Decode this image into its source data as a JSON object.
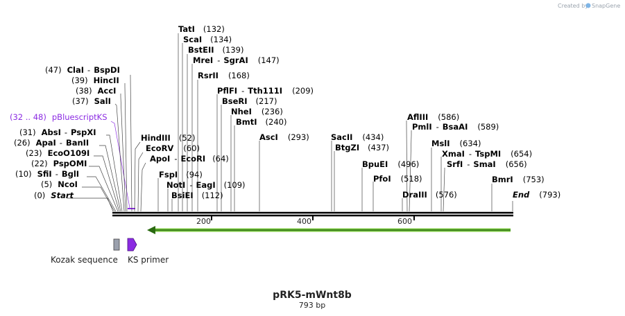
{
  "credit": {
    "prefix": "Created by",
    "brand": "SnapGene"
  },
  "plasmid": {
    "name": "pRK5-mWnt8b",
    "length_label": "793 bp"
  },
  "axis": {
    "ticks": [
      "200",
      "400",
      "600"
    ]
  },
  "features": [
    {
      "name": "Kozak sequence",
      "color": "#9aa0ad"
    },
    {
      "name": "KS primer",
      "color": "#8b2be2"
    },
    {
      "name": "green-arc-feature",
      "color": "#7dc843"
    }
  ],
  "sites": [
    {
      "name": "Start",
      "pos": "(0)",
      "italic": true
    },
    {
      "name": "NcoI",
      "pos": "(5)"
    },
    {
      "name": "SfiI",
      "pos": "(10)",
      "name2": "BglI"
    },
    {
      "name": "PspOMI",
      "pos": "(22)"
    },
    {
      "name": "EcoO109I",
      "pos": "(23)"
    },
    {
      "name": "ApaI",
      "pos": "(26)",
      "name2": "BanII"
    },
    {
      "name": "AbsI",
      "pos": "(31)",
      "name2": "PspXI"
    },
    {
      "name": "pBluescriptKS",
      "pos": "(32 .. 48)",
      "feature": true
    },
    {
      "name": "SalI",
      "pos": "(37)"
    },
    {
      "name": "AccI",
      "pos": "(38)"
    },
    {
      "name": "HincII",
      "pos": "(39)"
    },
    {
      "name": "ClaI",
      "pos": "(47)",
      "name2": "BspDI"
    },
    {
      "name": "HindIII",
      "pos": "(52)"
    },
    {
      "name": "EcoRV",
      "pos": "(60)"
    },
    {
      "name": "ApoI",
      "pos": "(64)",
      "name2": "EcoRI"
    },
    {
      "name": "FspI",
      "pos": "(94)"
    },
    {
      "name": "NotI",
      "pos": "(109)",
      "name2": "EagI"
    },
    {
      "name": "BsiEI",
      "pos": "(112)"
    },
    {
      "name": "TatI",
      "pos": "(132)"
    },
    {
      "name": "ScaI",
      "pos": "(134)"
    },
    {
      "name": "BstEII",
      "pos": "(139)"
    },
    {
      "name": "MreI",
      "pos": "(147)",
      "name2": "SgrAI"
    },
    {
      "name": "RsrII",
      "pos": "(168)"
    },
    {
      "name": "PflFI",
      "pos": "(209)",
      "name2": "Tth111I"
    },
    {
      "name": "BseRI",
      "pos": "(217)"
    },
    {
      "name": "NheI",
      "pos": "(236)"
    },
    {
      "name": "BmtI",
      "pos": "(240)"
    },
    {
      "name": "AscI",
      "pos": "(293)"
    },
    {
      "name": "SacII",
      "pos": "(434)"
    },
    {
      "name": "BtgZI",
      "pos": "(437)"
    },
    {
      "name": "BpuEI",
      "pos": "(496)"
    },
    {
      "name": "PfoI",
      "pos": "(518)"
    },
    {
      "name": "DraIII",
      "pos": "(576)"
    },
    {
      "name": "AflIII",
      "pos": "(586)"
    },
    {
      "name": "PmlI",
      "pos": "(589)",
      "name2": "BsaAI"
    },
    {
      "name": "MslI",
      "pos": "(634)"
    },
    {
      "name": "XmaI",
      "pos": "(654)",
      "name2": "TspMI"
    },
    {
      "name": "SrfI",
      "pos": "(656)",
      "name2": "SmaI"
    },
    {
      "name": "BmrI",
      "pos": "(753)"
    },
    {
      "name": "End",
      "pos": "(793)",
      "italic": true
    }
  ]
}
